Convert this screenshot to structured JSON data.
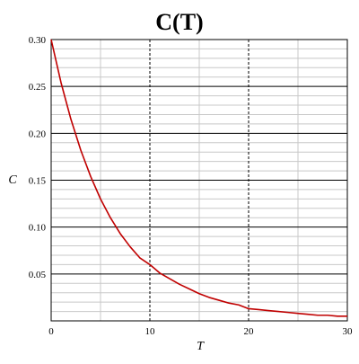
{
  "chart_data": {
    "type": "line",
    "title": "C(T)",
    "xlabel": "T",
    "ylabel": "C",
    "xlim": [
      0,
      30
    ],
    "ylim": [
      0,
      0.3
    ],
    "x_ticks": [
      0,
      10,
      20,
      30
    ],
    "x_tick_labels": [
      "0",
      "10",
      "20",
      "30"
    ],
    "y_ticks": [
      0.05,
      0.1,
      0.15,
      0.2,
      0.25,
      0.3
    ],
    "y_tick_labels": [
      "0.05",
      "0.10",
      "0.15",
      "0.20",
      "0.25",
      "0.30"
    ],
    "grid": true,
    "legend": "none",
    "series": [
      {
        "color": "#c00000",
        "x": [
          0,
          1,
          2,
          3,
          4,
          5,
          6,
          7,
          8,
          9,
          10,
          11,
          12,
          13,
          14,
          15,
          16,
          17,
          18,
          19,
          20,
          21,
          22,
          23,
          24,
          25,
          26,
          27,
          28,
          29,
          30
        ],
        "y": [
          0.3,
          0.254,
          0.215,
          0.182,
          0.154,
          0.13,
          0.11,
          0.093,
          0.079,
          0.067,
          0.06,
          0.051,
          0.045,
          0.039,
          0.034,
          0.029,
          0.025,
          0.022,
          0.019,
          0.017,
          0.013,
          0.012,
          0.011,
          0.01,
          0.009,
          0.008,
          0.007,
          0.006,
          0.006,
          0.005,
          0.005
        ]
      }
    ]
  }
}
